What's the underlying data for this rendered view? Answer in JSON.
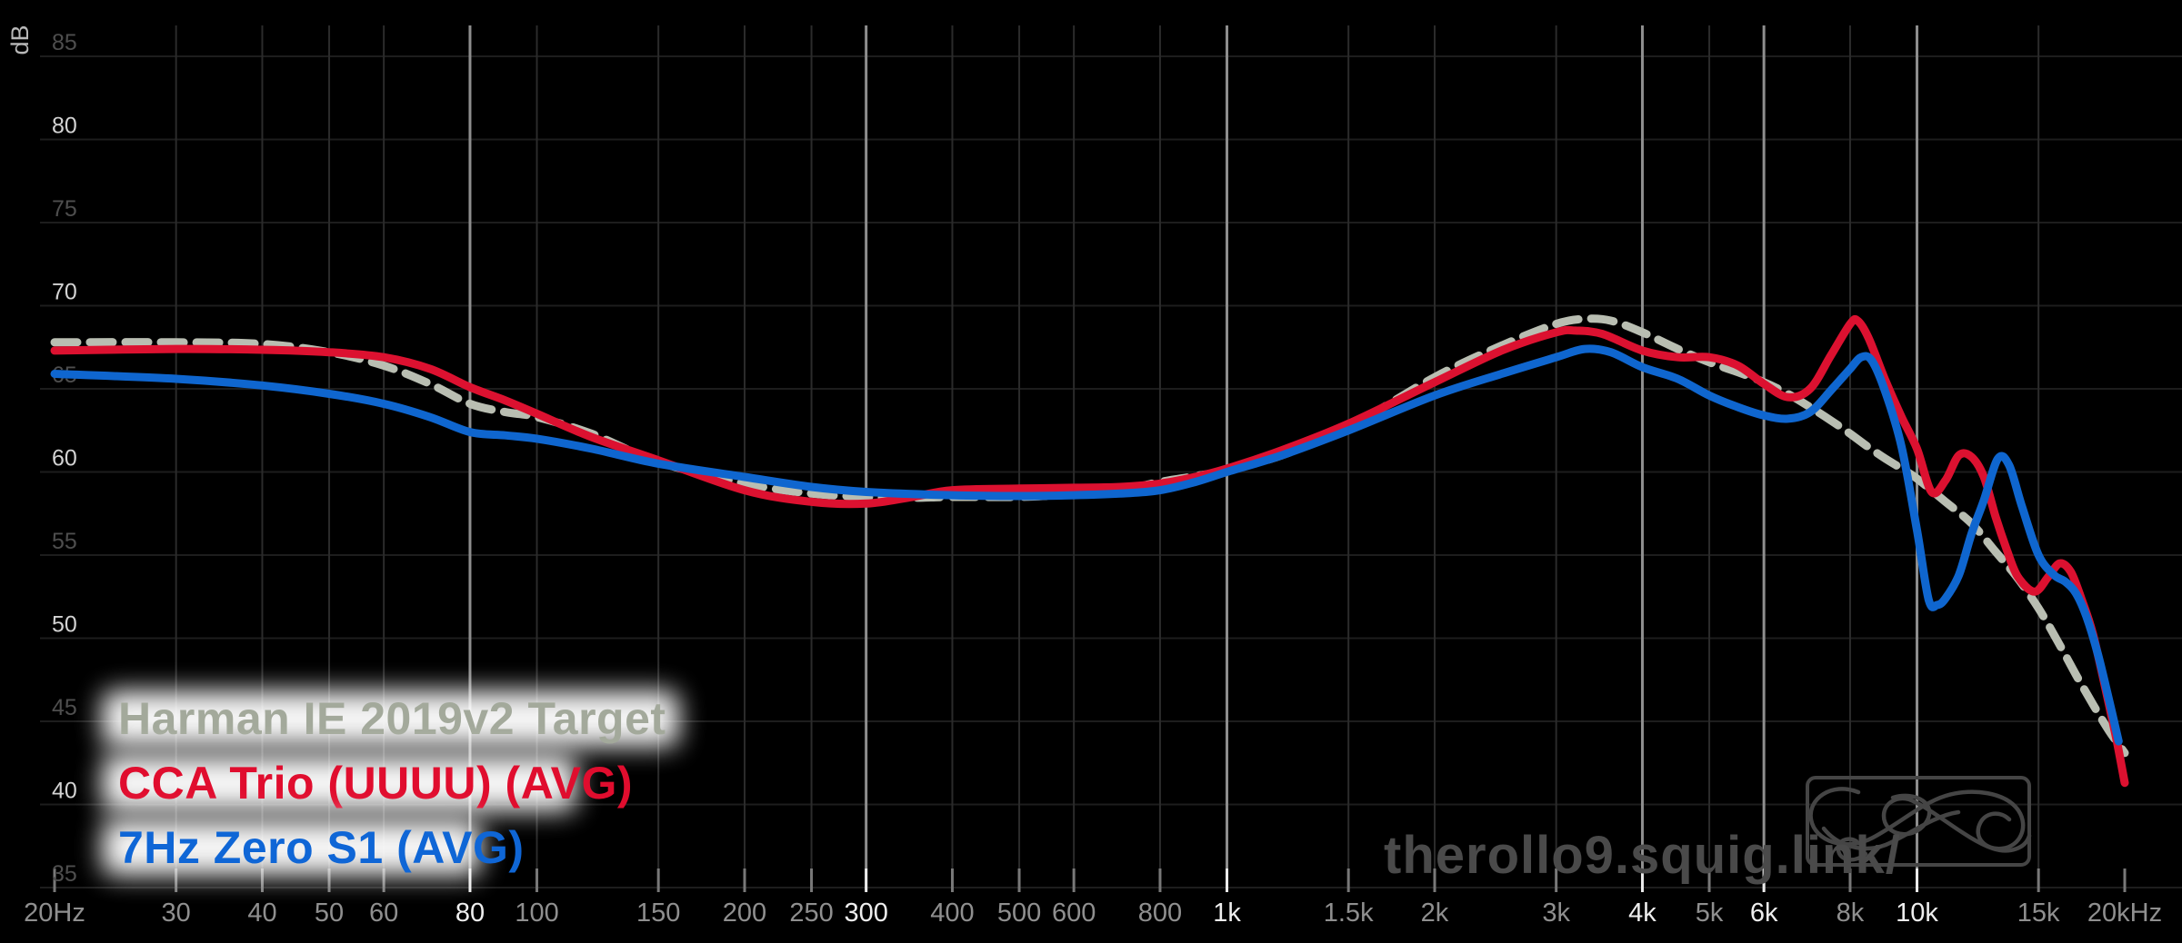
{
  "chart_data": {
    "type": "line",
    "title": "",
    "xlabel": "",
    "ylabel": "dB",
    "x_axis": {
      "scale": "log",
      "min": 20,
      "max": 20000,
      "ticks": [
        {
          "f": 20,
          "label": "20Hz",
          "bright": false,
          "gridline": false
        },
        {
          "f": 30,
          "label": "30",
          "bright": false,
          "gridline": true
        },
        {
          "f": 40,
          "label": "40",
          "bright": false,
          "gridline": true
        },
        {
          "f": 50,
          "label": "50",
          "bright": false,
          "gridline": true
        },
        {
          "f": 60,
          "label": "60",
          "bright": false,
          "gridline": true
        },
        {
          "f": 80,
          "label": "80",
          "bright": true,
          "gridline": true
        },
        {
          "f": 100,
          "label": "100",
          "bright": false,
          "gridline": true
        },
        {
          "f": 150,
          "label": "150",
          "bright": false,
          "gridline": true
        },
        {
          "f": 200,
          "label": "200",
          "bright": false,
          "gridline": true
        },
        {
          "f": 250,
          "label": "250",
          "bright": false,
          "gridline": true
        },
        {
          "f": 300,
          "label": "300",
          "bright": true,
          "gridline": true
        },
        {
          "f": 400,
          "label": "400",
          "bright": false,
          "gridline": true
        },
        {
          "f": 500,
          "label": "500",
          "bright": false,
          "gridline": true
        },
        {
          "f": 600,
          "label": "600",
          "bright": false,
          "gridline": true
        },
        {
          "f": 800,
          "label": "800",
          "bright": false,
          "gridline": true
        },
        {
          "f": 1000,
          "label": "1k",
          "bright": true,
          "gridline": true
        },
        {
          "f": 1500,
          "label": "1.5k",
          "bright": false,
          "gridline": true
        },
        {
          "f": 2000,
          "label": "2k",
          "bright": false,
          "gridline": true
        },
        {
          "f": 3000,
          "label": "3k",
          "bright": false,
          "gridline": true
        },
        {
          "f": 4000,
          "label": "4k",
          "bright": true,
          "gridline": true
        },
        {
          "f": 5000,
          "label": "5k",
          "bright": false,
          "gridline": true
        },
        {
          "f": 6000,
          "label": "6k",
          "bright": true,
          "gridline": true
        },
        {
          "f": 8000,
          "label": "8k",
          "bright": false,
          "gridline": true
        },
        {
          "f": 10000,
          "label": "10k",
          "bright": true,
          "gridline": true
        },
        {
          "f": 15000,
          "label": "15k",
          "bright": false,
          "gridline": true
        },
        {
          "f": 20000,
          "label": "20kHz",
          "bright": false,
          "gridline": false
        }
      ]
    },
    "y_axis": {
      "label": "dB",
      "min": 35,
      "max": 85,
      "step": 5,
      "ticks": [
        {
          "v": 85,
          "label": "85",
          "bright": false
        },
        {
          "v": 80,
          "label": "80",
          "bright": true
        },
        {
          "v": 75,
          "label": "75",
          "bright": false
        },
        {
          "v": 70,
          "label": "70",
          "bright": true
        },
        {
          "v": 65,
          "label": "65",
          "bright": false
        },
        {
          "v": 60,
          "label": "60",
          "bright": true
        },
        {
          "v": 55,
          "label": "55",
          "bright": false
        },
        {
          "v": 50,
          "label": "50",
          "bright": true
        },
        {
          "v": 45,
          "label": "45",
          "bright": false
        },
        {
          "v": 40,
          "label": "40",
          "bright": true
        },
        {
          "v": 35,
          "label": "35",
          "bright": false
        }
      ]
    },
    "grid": true,
    "legend_position": "bottom-left",
    "series": [
      {
        "name": "Harman IE 2019v2 Target",
        "color": "#b9beb2",
        "line_style": "dashed",
        "points": [
          [
            20,
            67.8
          ],
          [
            30,
            67.8
          ],
          [
            40,
            67.7
          ],
          [
            50,
            67.2
          ],
          [
            60,
            66.4
          ],
          [
            70,
            65.3
          ],
          [
            80,
            64.1
          ],
          [
            90,
            63.6
          ],
          [
            100,
            63.3
          ],
          [
            120,
            62.3
          ],
          [
            150,
            60.6
          ],
          [
            200,
            59.3
          ],
          [
            250,
            58.7
          ],
          [
            300,
            58.5
          ],
          [
            350,
            58.45
          ],
          [
            400,
            58.5
          ],
          [
            500,
            58.5
          ],
          [
            600,
            58.65
          ],
          [
            700,
            58.9
          ],
          [
            800,
            59.4
          ],
          [
            900,
            59.75
          ],
          [
            1000,
            60.1
          ],
          [
            1200,
            61.0
          ],
          [
            1500,
            62.7
          ],
          [
            2000,
            65.7
          ],
          [
            2500,
            67.6
          ],
          [
            3000,
            68.9
          ],
          [
            3300,
            69.2
          ],
          [
            3600,
            69.1
          ],
          [
            4000,
            68.4
          ],
          [
            4500,
            67.4
          ],
          [
            5000,
            66.6
          ],
          [
            5500,
            66.0
          ],
          [
            6000,
            65.4
          ],
          [
            6500,
            64.7
          ],
          [
            7000,
            63.9
          ],
          [
            7500,
            63.1
          ],
          [
            8000,
            62.3
          ],
          [
            8500,
            61.5
          ],
          [
            9000,
            60.8
          ],
          [
            9500,
            60.2
          ],
          [
            10000,
            59.6
          ],
          [
            11000,
            58.2
          ],
          [
            12000,
            56.9
          ],
          [
            13000,
            55.2
          ],
          [
            14000,
            53.6
          ],
          [
            15000,
            51.8
          ],
          [
            16000,
            49.8
          ],
          [
            17000,
            47.8
          ],
          [
            18000,
            46.0
          ],
          [
            19000,
            44.4
          ],
          [
            20000,
            43.1
          ]
        ]
      },
      {
        "name": "CCA Trio (UUUU) (AVG)",
        "color": "#dc1130",
        "line_style": "solid",
        "points": [
          [
            20,
            67.3
          ],
          [
            30,
            67.4
          ],
          [
            40,
            67.35
          ],
          [
            50,
            67.2
          ],
          [
            60,
            66.9
          ],
          [
            70,
            66.2
          ],
          [
            80,
            65.1
          ],
          [
            90,
            64.3
          ],
          [
            100,
            63.5
          ],
          [
            120,
            62.1
          ],
          [
            150,
            60.7
          ],
          [
            200,
            58.9
          ],
          [
            250,
            58.2
          ],
          [
            300,
            58.1
          ],
          [
            350,
            58.5
          ],
          [
            400,
            58.9
          ],
          [
            500,
            59.0
          ],
          [
            600,
            59.05
          ],
          [
            700,
            59.1
          ],
          [
            800,
            59.3
          ],
          [
            900,
            59.7
          ],
          [
            1000,
            60.2
          ],
          [
            1200,
            61.3
          ],
          [
            1500,
            62.9
          ],
          [
            2000,
            65.4
          ],
          [
            2500,
            67.3
          ],
          [
            3000,
            68.4
          ],
          [
            3200,
            68.5
          ],
          [
            3500,
            68.3
          ],
          [
            4000,
            67.3
          ],
          [
            4500,
            66.9
          ],
          [
            5000,
            66.9
          ],
          [
            5500,
            66.4
          ],
          [
            6000,
            65.3
          ],
          [
            6500,
            64.5
          ],
          [
            7000,
            65.0
          ],
          [
            7500,
            67.0
          ],
          [
            8000,
            68.9
          ],
          [
            8200,
            69.1
          ],
          [
            8500,
            68.1
          ],
          [
            9000,
            65.5
          ],
          [
            9500,
            63.3
          ],
          [
            10000,
            61.4
          ],
          [
            10500,
            58.8
          ],
          [
            11000,
            59.5
          ],
          [
            11500,
            61.0
          ],
          [
            12000,
            60.9
          ],
          [
            12500,
            59.7
          ],
          [
            13000,
            57.3
          ],
          [
            13500,
            55.3
          ],
          [
            14000,
            53.7
          ],
          [
            14800,
            52.8
          ],
          [
            15500,
            53.7
          ],
          [
            16100,
            54.5
          ],
          [
            16700,
            54.0
          ],
          [
            17300,
            52.4
          ],
          [
            18000,
            50.2
          ],
          [
            19000,
            45.9
          ],
          [
            19500,
            43.7
          ],
          [
            20000,
            41.3
          ]
        ]
      },
      {
        "name": "7Hz Zero S1 (AVG)",
        "color": "#0f66cf",
        "line_style": "solid",
        "points": [
          [
            20,
            65.9
          ],
          [
            30,
            65.6
          ],
          [
            40,
            65.2
          ],
          [
            50,
            64.7
          ],
          [
            60,
            64.1
          ],
          [
            70,
            63.3
          ],
          [
            80,
            62.4
          ],
          [
            90,
            62.2
          ],
          [
            100,
            62.0
          ],
          [
            120,
            61.4
          ],
          [
            150,
            60.5
          ],
          [
            200,
            59.7
          ],
          [
            250,
            59.1
          ],
          [
            300,
            58.8
          ],
          [
            400,
            58.6
          ],
          [
            500,
            58.55
          ],
          [
            600,
            58.6
          ],
          [
            700,
            58.7
          ],
          [
            800,
            58.9
          ],
          [
            900,
            59.4
          ],
          [
            1000,
            60.0
          ],
          [
            1200,
            61.0
          ],
          [
            1500,
            62.5
          ],
          [
            2000,
            64.6
          ],
          [
            2500,
            65.9
          ],
          [
            3000,
            66.9
          ],
          [
            3300,
            67.4
          ],
          [
            3600,
            67.2
          ],
          [
            4000,
            66.3
          ],
          [
            4500,
            65.6
          ],
          [
            5000,
            64.6
          ],
          [
            5500,
            63.9
          ],
          [
            6000,
            63.4
          ],
          [
            6500,
            63.2
          ],
          [
            7000,
            63.6
          ],
          [
            7500,
            64.9
          ],
          [
            8000,
            66.2
          ],
          [
            8300,
            66.9
          ],
          [
            8600,
            66.7
          ],
          [
            9000,
            64.8
          ],
          [
            9500,
            61.5
          ],
          [
            10000,
            56.5
          ],
          [
            10400,
            52.3
          ],
          [
            10700,
            52.0
          ],
          [
            11000,
            52.4
          ],
          [
            11500,
            53.8
          ],
          [
            12000,
            56.3
          ],
          [
            12500,
            58.3
          ],
          [
            13100,
            60.8
          ],
          [
            13600,
            60.4
          ],
          [
            14200,
            57.9
          ],
          [
            15000,
            55.0
          ],
          [
            15800,
            53.8
          ],
          [
            16400,
            53.4
          ],
          [
            17000,
            52.7
          ],
          [
            17600,
            51.3
          ],
          [
            18300,
            49.0
          ],
          [
            19000,
            46.2
          ],
          [
            19600,
            43.8
          ]
        ]
      }
    ]
  },
  "legend": {
    "items": [
      {
        "label": "Harman IE 2019v2 Target",
        "color": "#a3a99b"
      },
      {
        "label": "CCA Trio (UUUU) (AVG)",
        "color": "#e00d2e"
      },
      {
        "label": "7Hz Zero S1 (AVG)",
        "color": "#0f66d6"
      }
    ]
  },
  "watermark": {
    "text": "therollo9.squig.link/"
  },
  "branding": {
    "logo_icon": "squig-flourish-logo"
  },
  "colors": {
    "background": "#000000",
    "grid_horizontal": "#1d1d1d",
    "grid_vertical_dim": "#2b2b2b",
    "grid_vertical_bright": "#8e8e8e",
    "tick_dim": "#787878",
    "tick_bright": "#ebebeb",
    "x_label_dim": "#8f8f8f",
    "x_label_bright": "#eeeeee",
    "y_label_dim": "#4e4e4e",
    "y_label_bright": "#d3d3d3",
    "axis_unit": "#b8b8b8",
    "watermark": "#4a4a4a",
    "logo": "#454545"
  }
}
